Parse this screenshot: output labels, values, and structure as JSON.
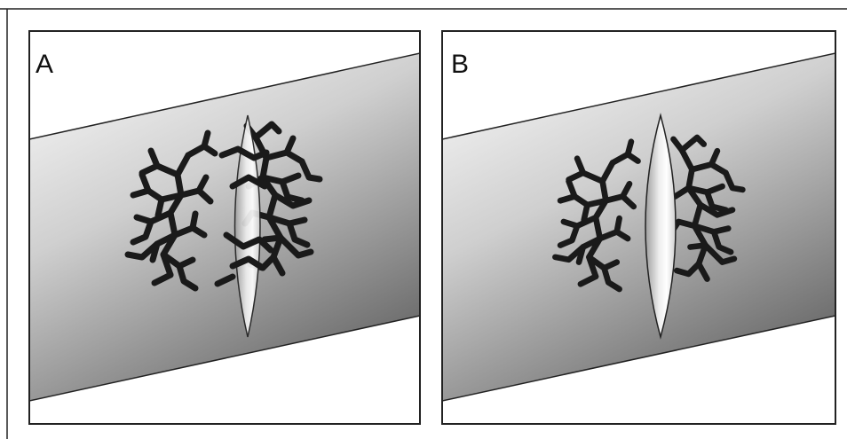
{
  "panels": [
    {
      "label": "A"
    },
    {
      "label": "B"
    }
  ],
  "colors": {
    "background": "#ffffff",
    "border": "#222222",
    "band_light": "#fbfbfb",
    "band_dark": "#707070",
    "lens_light": "#ffffff",
    "lens_dark": "#9c9c9c",
    "branch": "#1a1a1a"
  }
}
